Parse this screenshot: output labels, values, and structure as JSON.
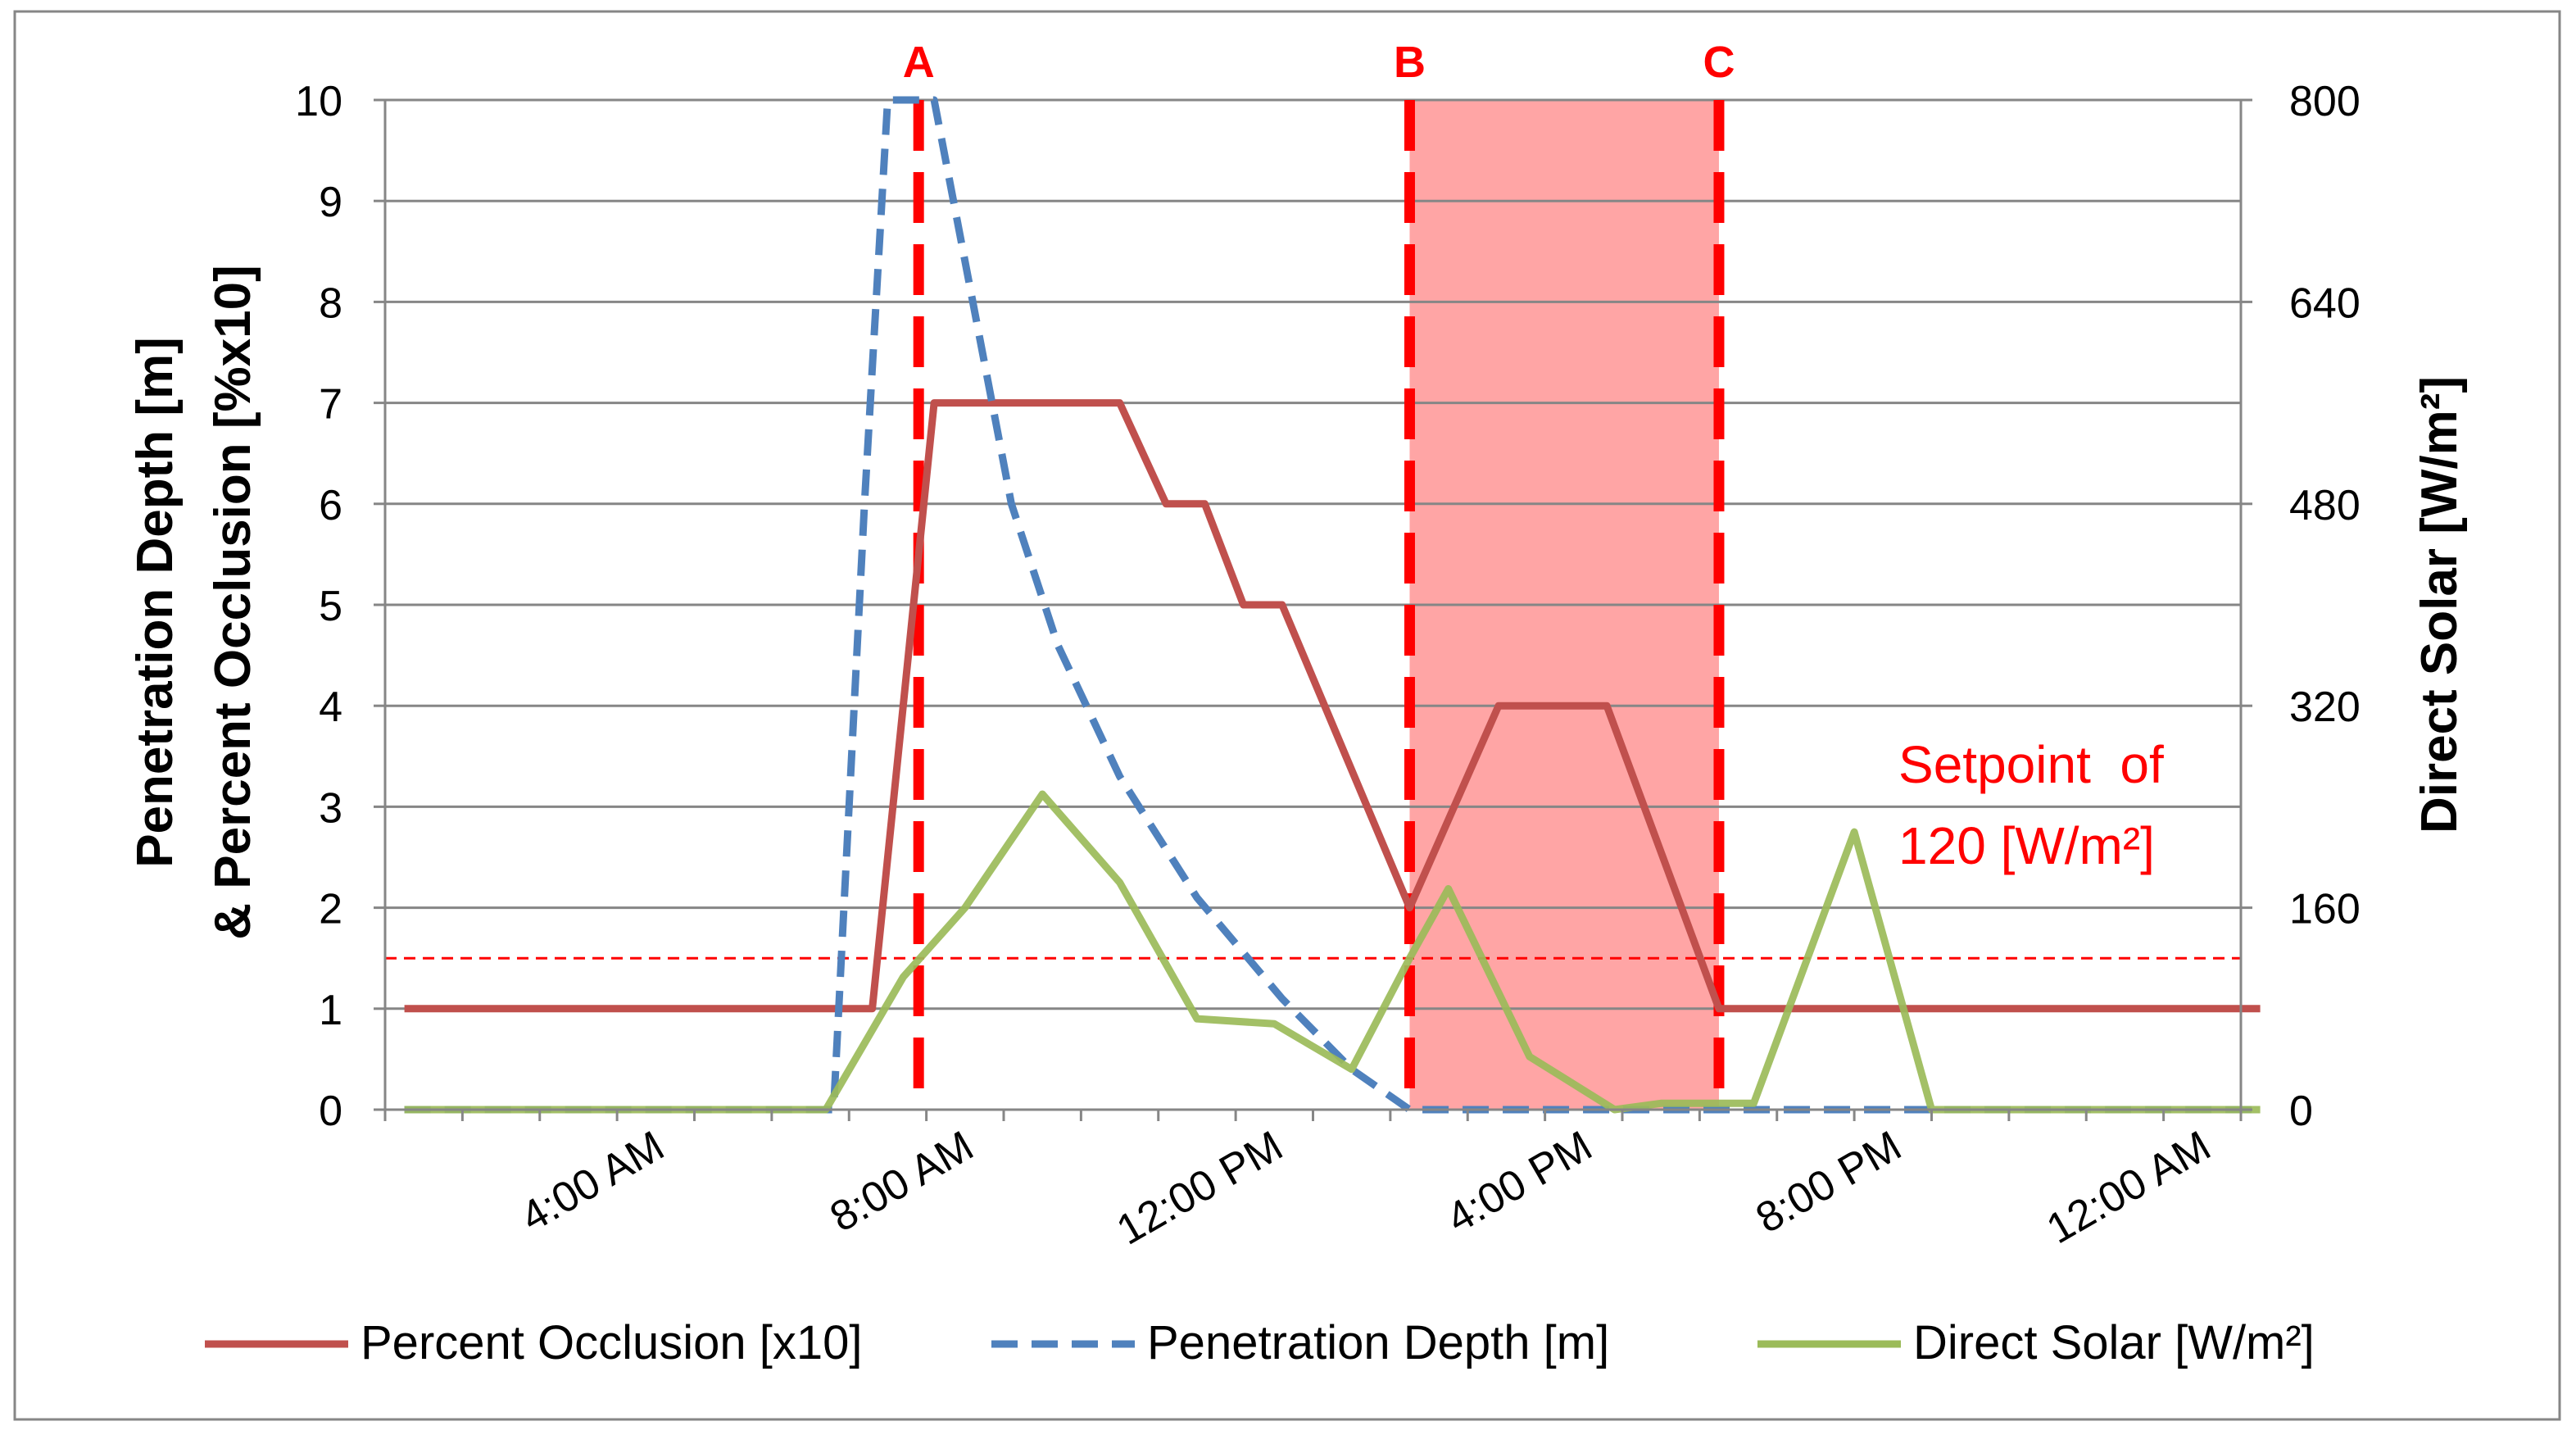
{
  "chart_data": {
    "type": "line",
    "title": "",
    "x_tick_labels": [
      "4:00 AM",
      "8:00 AM",
      "12:00 PM",
      "4:00 PM",
      "8:00 PM",
      "12:00 AM"
    ],
    "x_hours": [
      1,
      2,
      3,
      4,
      5,
      6,
      7,
      8,
      9,
      10,
      11,
      12,
      13,
      14,
      15,
      16,
      17,
      18,
      19,
      20,
      21,
      22,
      23,
      24
    ],
    "xlim_hours": [
      0.5,
      24.5
    ],
    "ylabel_left": "Penetration Depth [m]\n& Percent Occlusion [%x10]",
    "ylabel_left_lines": [
      "Penetration Depth [m]",
      "& Percent Occlusion [%x10]"
    ],
    "ylabel_right": "Direct Solar [W/m²]",
    "ylim_left": [
      0,
      10
    ],
    "ylim_right": [
      0,
      800
    ],
    "yticks_left": [
      "0",
      "1",
      "2",
      "3",
      "4",
      "5",
      "6",
      "7",
      "8",
      "9",
      "10"
    ],
    "yticks_right": [
      "0",
      "160",
      "320",
      "480",
      "640",
      "800"
    ],
    "series": [
      {
        "name": "Percent Occlusion [x10]",
        "axis": "left",
        "color": "#C0504D",
        "dash": "solid",
        "points": [
          [
            0.75,
            1
          ],
          [
            6.8,
            1
          ],
          [
            7.6,
            7
          ],
          [
            9,
            7
          ],
          [
            10,
            7
          ],
          [
            10.6,
            6
          ],
          [
            11.1,
            6
          ],
          [
            11.6,
            5
          ],
          [
            12.1,
            5
          ],
          [
            13.75,
            2
          ],
          [
            14.9,
            4
          ],
          [
            16.3,
            4
          ],
          [
            17.75,
            1
          ],
          [
            24.75,
            1
          ]
        ]
      },
      {
        "name": "Penetration Depth [m]",
        "axis": "left",
        "color": "#4F81BD",
        "dash": "dashed",
        "points": [
          [
            0.75,
            0
          ],
          [
            6.3,
            0
          ],
          [
            6.7,
            6
          ],
          [
            7,
            10
          ],
          [
            7.6,
            10
          ],
          [
            8.1,
            8
          ],
          [
            8.6,
            6
          ],
          [
            9.2,
            4.6
          ],
          [
            10,
            3.3
          ],
          [
            11,
            2.1
          ],
          [
            12.1,
            1.1
          ],
          [
            13,
            0.4
          ],
          [
            13.75,
            0
          ],
          [
            24.75,
            0
          ]
        ]
      },
      {
        "name": "Direct Solar [W/m²]",
        "axis": "right",
        "color": "#9BBB59",
        "dash": "solid",
        "points": [
          [
            0.75,
            0
          ],
          [
            6.2,
            0
          ],
          [
            7.2,
            105
          ],
          [
            8,
            160
          ],
          [
            9,
            250
          ],
          [
            10,
            180
          ],
          [
            11,
            72
          ],
          [
            12,
            68
          ],
          [
            13,
            32
          ],
          [
            13.75,
            120
          ],
          [
            14.25,
            175
          ],
          [
            15.3,
            42
          ],
          [
            16.4,
            0
          ],
          [
            17,
            5
          ],
          [
            17.75,
            5
          ],
          [
            18.2,
            5
          ],
          [
            19.5,
            220
          ],
          [
            20.5,
            0
          ],
          [
            24.75,
            0
          ]
        ]
      }
    ],
    "markers": [
      {
        "label": "A",
        "hour": 7.4
      },
      {
        "label": "B",
        "hour": 13.75
      },
      {
        "label": "C",
        "hour": 17.75
      }
    ],
    "shaded_region": {
      "from_label": "B",
      "to_label": "C",
      "color": "#FFA5A5"
    },
    "setpoint": {
      "value": 120,
      "axis": "right",
      "color": "#FF0000",
      "dash": "dotted"
    },
    "annotation_lines": [
      "Setpoint  of",
      "120 [W/m²]"
    ],
    "legend_position": "bottom",
    "grid": true
  }
}
